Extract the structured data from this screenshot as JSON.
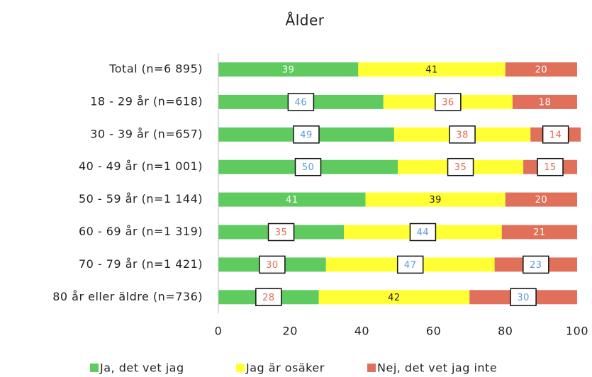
{
  "chart_data": {
    "type": "stacked-bar-horizontal",
    "title": "Ålder",
    "categories": [
      "Total (n=6 895)",
      "18 - 29 år (n=618)",
      "30 - 39 år (n=657)",
      "40 - 49 år (n=1 001)",
      "50 - 59 år (n=1 144)",
      "60 - 69 år (n=1 319)",
      "70 - 79 år (n=1 421)",
      "80 år eller äldre (n=736)"
    ],
    "series": [
      {
        "name": "Ja, det vet jag",
        "color": "#5fcb5f",
        "label_color": "#ffffff",
        "values": [
          39,
          46,
          49,
          50,
          41,
          35,
          30,
          28
        ],
        "label_box_colors": [
          null,
          "#5b9bd5",
          "#5b9bd5",
          "#5b9bd5",
          null,
          "#e06c55",
          "#e06c55",
          "#e06c55"
        ]
      },
      {
        "name": "Jag är osäker",
        "color": "#ffff33",
        "label_color": "#222222",
        "values": [
          41,
          36,
          38,
          35,
          39,
          44,
          47,
          42
        ],
        "label_box_colors": [
          null,
          "#e06c55",
          "#e06c55",
          "#e06c55",
          null,
          "#5b9bd5",
          "#5b9bd5",
          null
        ]
      },
      {
        "name": "Nej, det vet jag inte",
        "color": "#e0705a",
        "label_color": "#ffffff",
        "values": [
          20,
          18,
          14,
          15,
          20,
          21,
          23,
          30
        ],
        "label_box_colors": [
          null,
          null,
          "#e06c55",
          "#e06c55",
          null,
          null,
          "#5b9bd5",
          "#5b9bd5"
        ]
      }
    ],
    "xlim": [
      0,
      100
    ],
    "xticks": [
      0,
      20,
      40,
      60,
      80,
      100
    ]
  }
}
